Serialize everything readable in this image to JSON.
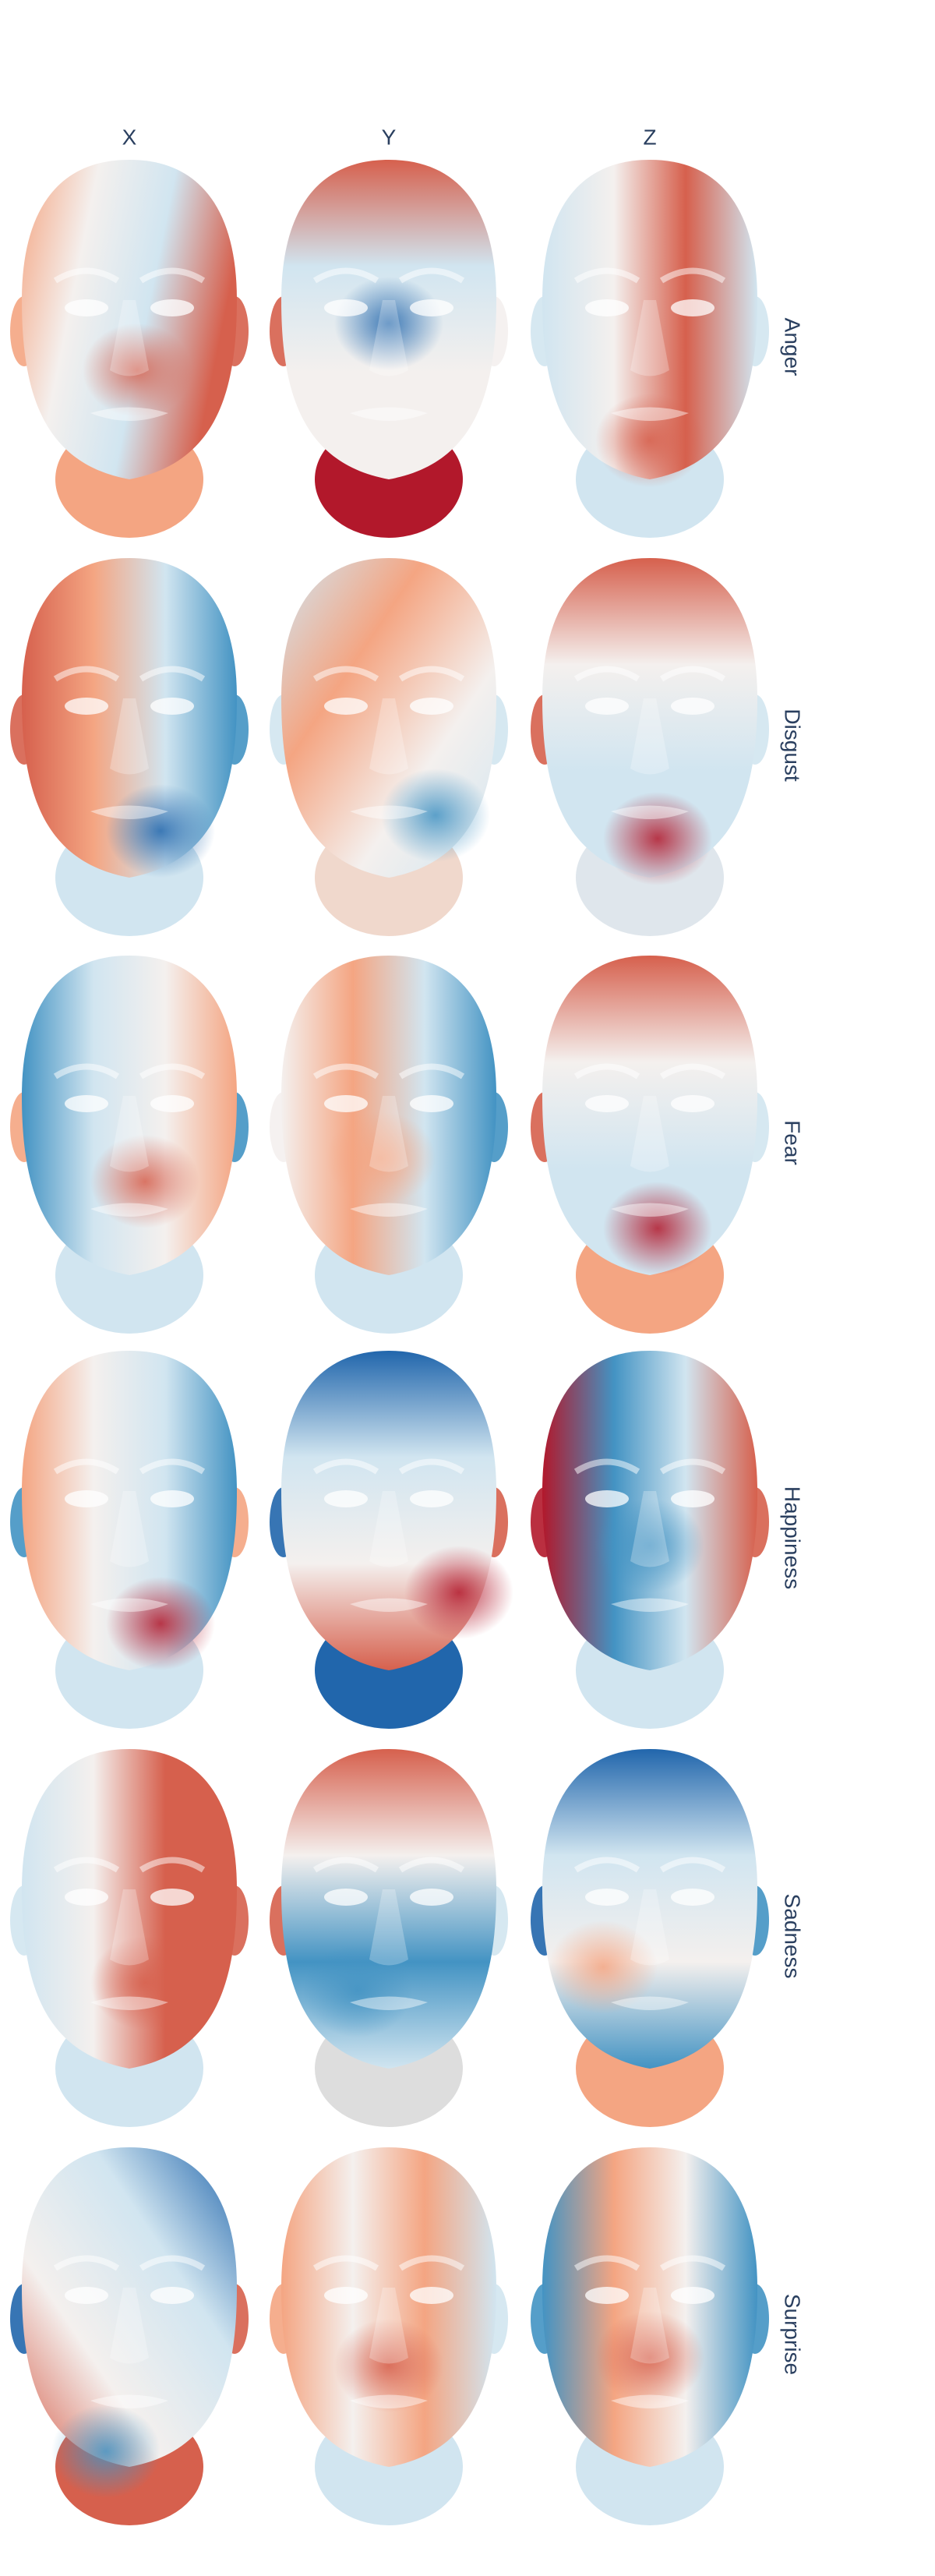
{
  "columns": [
    "X",
    "Y",
    "Z"
  ],
  "rows": [
    "Anger",
    "Disgust",
    "Fear",
    "Happiness",
    "Sadness",
    "Surprise"
  ]
}
